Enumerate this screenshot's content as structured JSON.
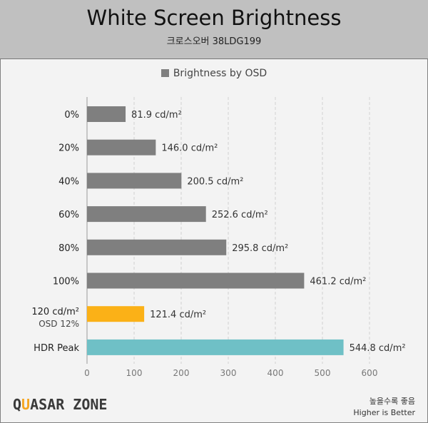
{
  "header": {
    "title": "White Screen Brightness",
    "subtitle": "크로스오버 38LDG199"
  },
  "logo": {
    "prefix": "Q",
    "highlight": "U",
    "suffix": "ASAR ZONE"
  },
  "note": {
    "korean": "높을수록 좋음",
    "english": "Higher is Better"
  },
  "chart_data": {
    "type": "bar",
    "orientation": "horizontal",
    "title": "White Screen Brightness",
    "subtitle": "크로스오버 38LDG199",
    "legend": [
      {
        "name": "Brightness by OSD",
        "color": "#7f7f7f"
      }
    ],
    "legend_placement": "top",
    "categories": [
      "0%",
      "20%",
      "40%",
      "60%",
      "80%",
      "100%",
      "120 cd/m²|OSD 12%",
      "HDR Peak"
    ],
    "values": [
      81.9,
      146.0,
      200.5,
      252.6,
      295.8,
      461.2,
      121.4,
      544.8
    ],
    "value_labels": [
      "81.9 cd/m²",
      "146.0 cd/m²",
      "200.5 cd/m²",
      "252.6 cd/m²",
      "295.8 cd/m²",
      "461.2 cd/m²",
      "121.4 cd/m²",
      "544.8 cd/m²"
    ],
    "colors": [
      "#7f7f7f",
      "#7f7f7f",
      "#7f7f7f",
      "#7f7f7f",
      "#7f7f7f",
      "#7f7f7f",
      "#fbb117",
      "#6fc0c6"
    ],
    "xlim": [
      0,
      600
    ],
    "xticks": [
      "0",
      "100",
      "200",
      "300",
      "400",
      "500",
      "600"
    ],
    "grid": true,
    "xlabel": "",
    "ylabel": ""
  }
}
